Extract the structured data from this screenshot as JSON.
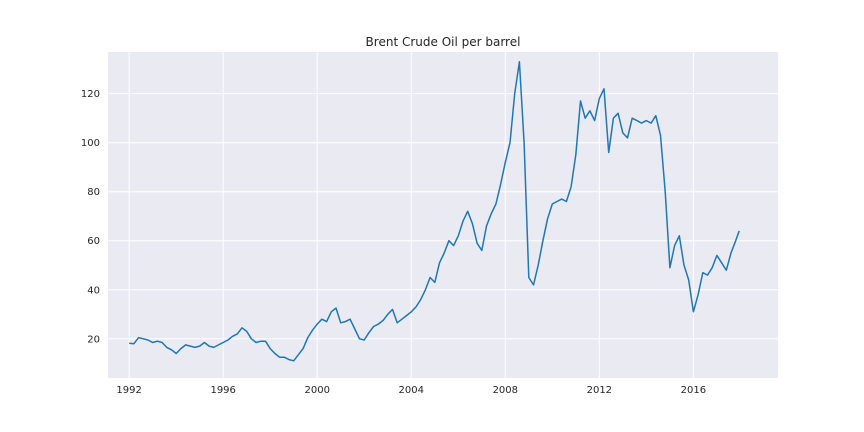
{
  "chart_data": {
    "type": "line",
    "title": "Brent Crude Oil per barrel",
    "xlabel": "",
    "ylabel": "",
    "xlim": [
      1991.1,
      2019.6
    ],
    "ylim": [
      4,
      137
    ],
    "grid": true,
    "x_ticks": [
      1992,
      1996,
      2000,
      2004,
      2008,
      2012,
      2016
    ],
    "y_ticks": [
      20,
      40,
      60,
      80,
      100,
      120
    ],
    "colors": {
      "line": "#1f77b4",
      "plot_background": "#eaeaf2",
      "grid": "#ffffff"
    },
    "series": [
      {
        "x": [
          1992.0,
          1992.2,
          1992.4,
          1992.6,
          1992.8,
          1993.0,
          1993.2,
          1993.4,
          1993.6,
          1993.8,
          1994.0,
          1994.2,
          1994.4,
          1994.6,
          1994.8,
          1995.0,
          1995.2,
          1995.4,
          1995.6,
          1995.8,
          1996.0,
          1996.2,
          1996.4,
          1996.6,
          1996.8,
          1997.0,
          1997.2,
          1997.4,
          1997.6,
          1997.8,
          1998.0,
          1998.2,
          1998.4,
          1998.6,
          1998.8,
          1999.0,
          1999.2,
          1999.4,
          1999.6,
          1999.8,
          2000.0,
          2000.2,
          2000.4,
          2000.6,
          2000.8,
          2001.0,
          2001.2,
          2001.4,
          2001.6,
          2001.8,
          2002.0,
          2002.2,
          2002.4,
          2002.6,
          2002.8,
          2003.0,
          2003.2,
          2003.4,
          2003.6,
          2003.8,
          2004.0,
          2004.2,
          2004.4,
          2004.6,
          2004.8,
          2005.0,
          2005.2,
          2005.4,
          2005.6,
          2005.8,
          2006.0,
          2006.2,
          2006.4,
          2006.6,
          2006.8,
          2007.0,
          2007.2,
          2007.4,
          2007.6,
          2007.8,
          2008.0,
          2008.2,
          2008.4,
          2008.6,
          2008.8,
          2009.0,
          2009.2,
          2009.4,
          2009.6,
          2009.8,
          2010.0,
          2010.2,
          2010.4,
          2010.6,
          2010.8,
          2011.0,
          2011.2,
          2011.4,
          2011.6,
          2011.8,
          2012.0,
          2012.2,
          2012.4,
          2012.6,
          2012.8,
          2013.0,
          2013.2,
          2013.4,
          2013.6,
          2013.8,
          2014.0,
          2014.2,
          2014.4,
          2014.6,
          2014.8,
          2015.0,
          2015.2,
          2015.4,
          2015.6,
          2015.8,
          2016.0,
          2016.2,
          2016.4,
          2016.6,
          2016.8,
          2017.0,
          2017.2,
          2017.4,
          2017.6,
          2017.8,
          2017.95
        ],
        "values": [
          18.2,
          18.0,
          20.5,
          20.0,
          19.5,
          18.5,
          19.0,
          18.5,
          16.5,
          15.5,
          14.0,
          16.0,
          17.5,
          17.0,
          16.5,
          17.0,
          18.5,
          17.0,
          16.5,
          17.5,
          18.5,
          19.5,
          21.0,
          22.0,
          24.5,
          23.0,
          20.0,
          18.5,
          19.0,
          19.0,
          16.0,
          14.0,
          12.5,
          12.5,
          11.5,
          11.0,
          13.5,
          16.0,
          20.5,
          23.5,
          26.0,
          28.0,
          27.0,
          31.0,
          32.5,
          26.5,
          27.0,
          28.0,
          24.0,
          20.0,
          19.5,
          22.5,
          25.0,
          26.0,
          27.5,
          30.0,
          32.0,
          26.5,
          28.0,
          29.5,
          31.0,
          33.0,
          36.0,
          40.0,
          45.0,
          43.0,
          51.0,
          55.0,
          60.0,
          58.0,
          62.0,
          68.0,
          72.0,
          67.0,
          59.0,
          56.0,
          66.0,
          71.0,
          75.0,
          83.0,
          92.0,
          100.0,
          120.0,
          133.0,
          100.0,
          45.0,
          42.0,
          50.0,
          60.0,
          69.0,
          75.0,
          76.0,
          77.0,
          76.0,
          82.0,
          95.0,
          117.0,
          110.0,
          113.0,
          109.0,
          118.0,
          122.0,
          96.0,
          110.0,
          112.0,
          104.0,
          102.0,
          110.0,
          109.0,
          108.0,
          109.0,
          108.0,
          111.0,
          103.0,
          80.0,
          49.0,
          58.0,
          62.0,
          50.0,
          44.0,
          31.0,
          38.0,
          47.0,
          46.0,
          49.0,
          54.0,
          51.0,
          48.0,
          55.0,
          60.0,
          64.0
        ]
      }
    ]
  }
}
